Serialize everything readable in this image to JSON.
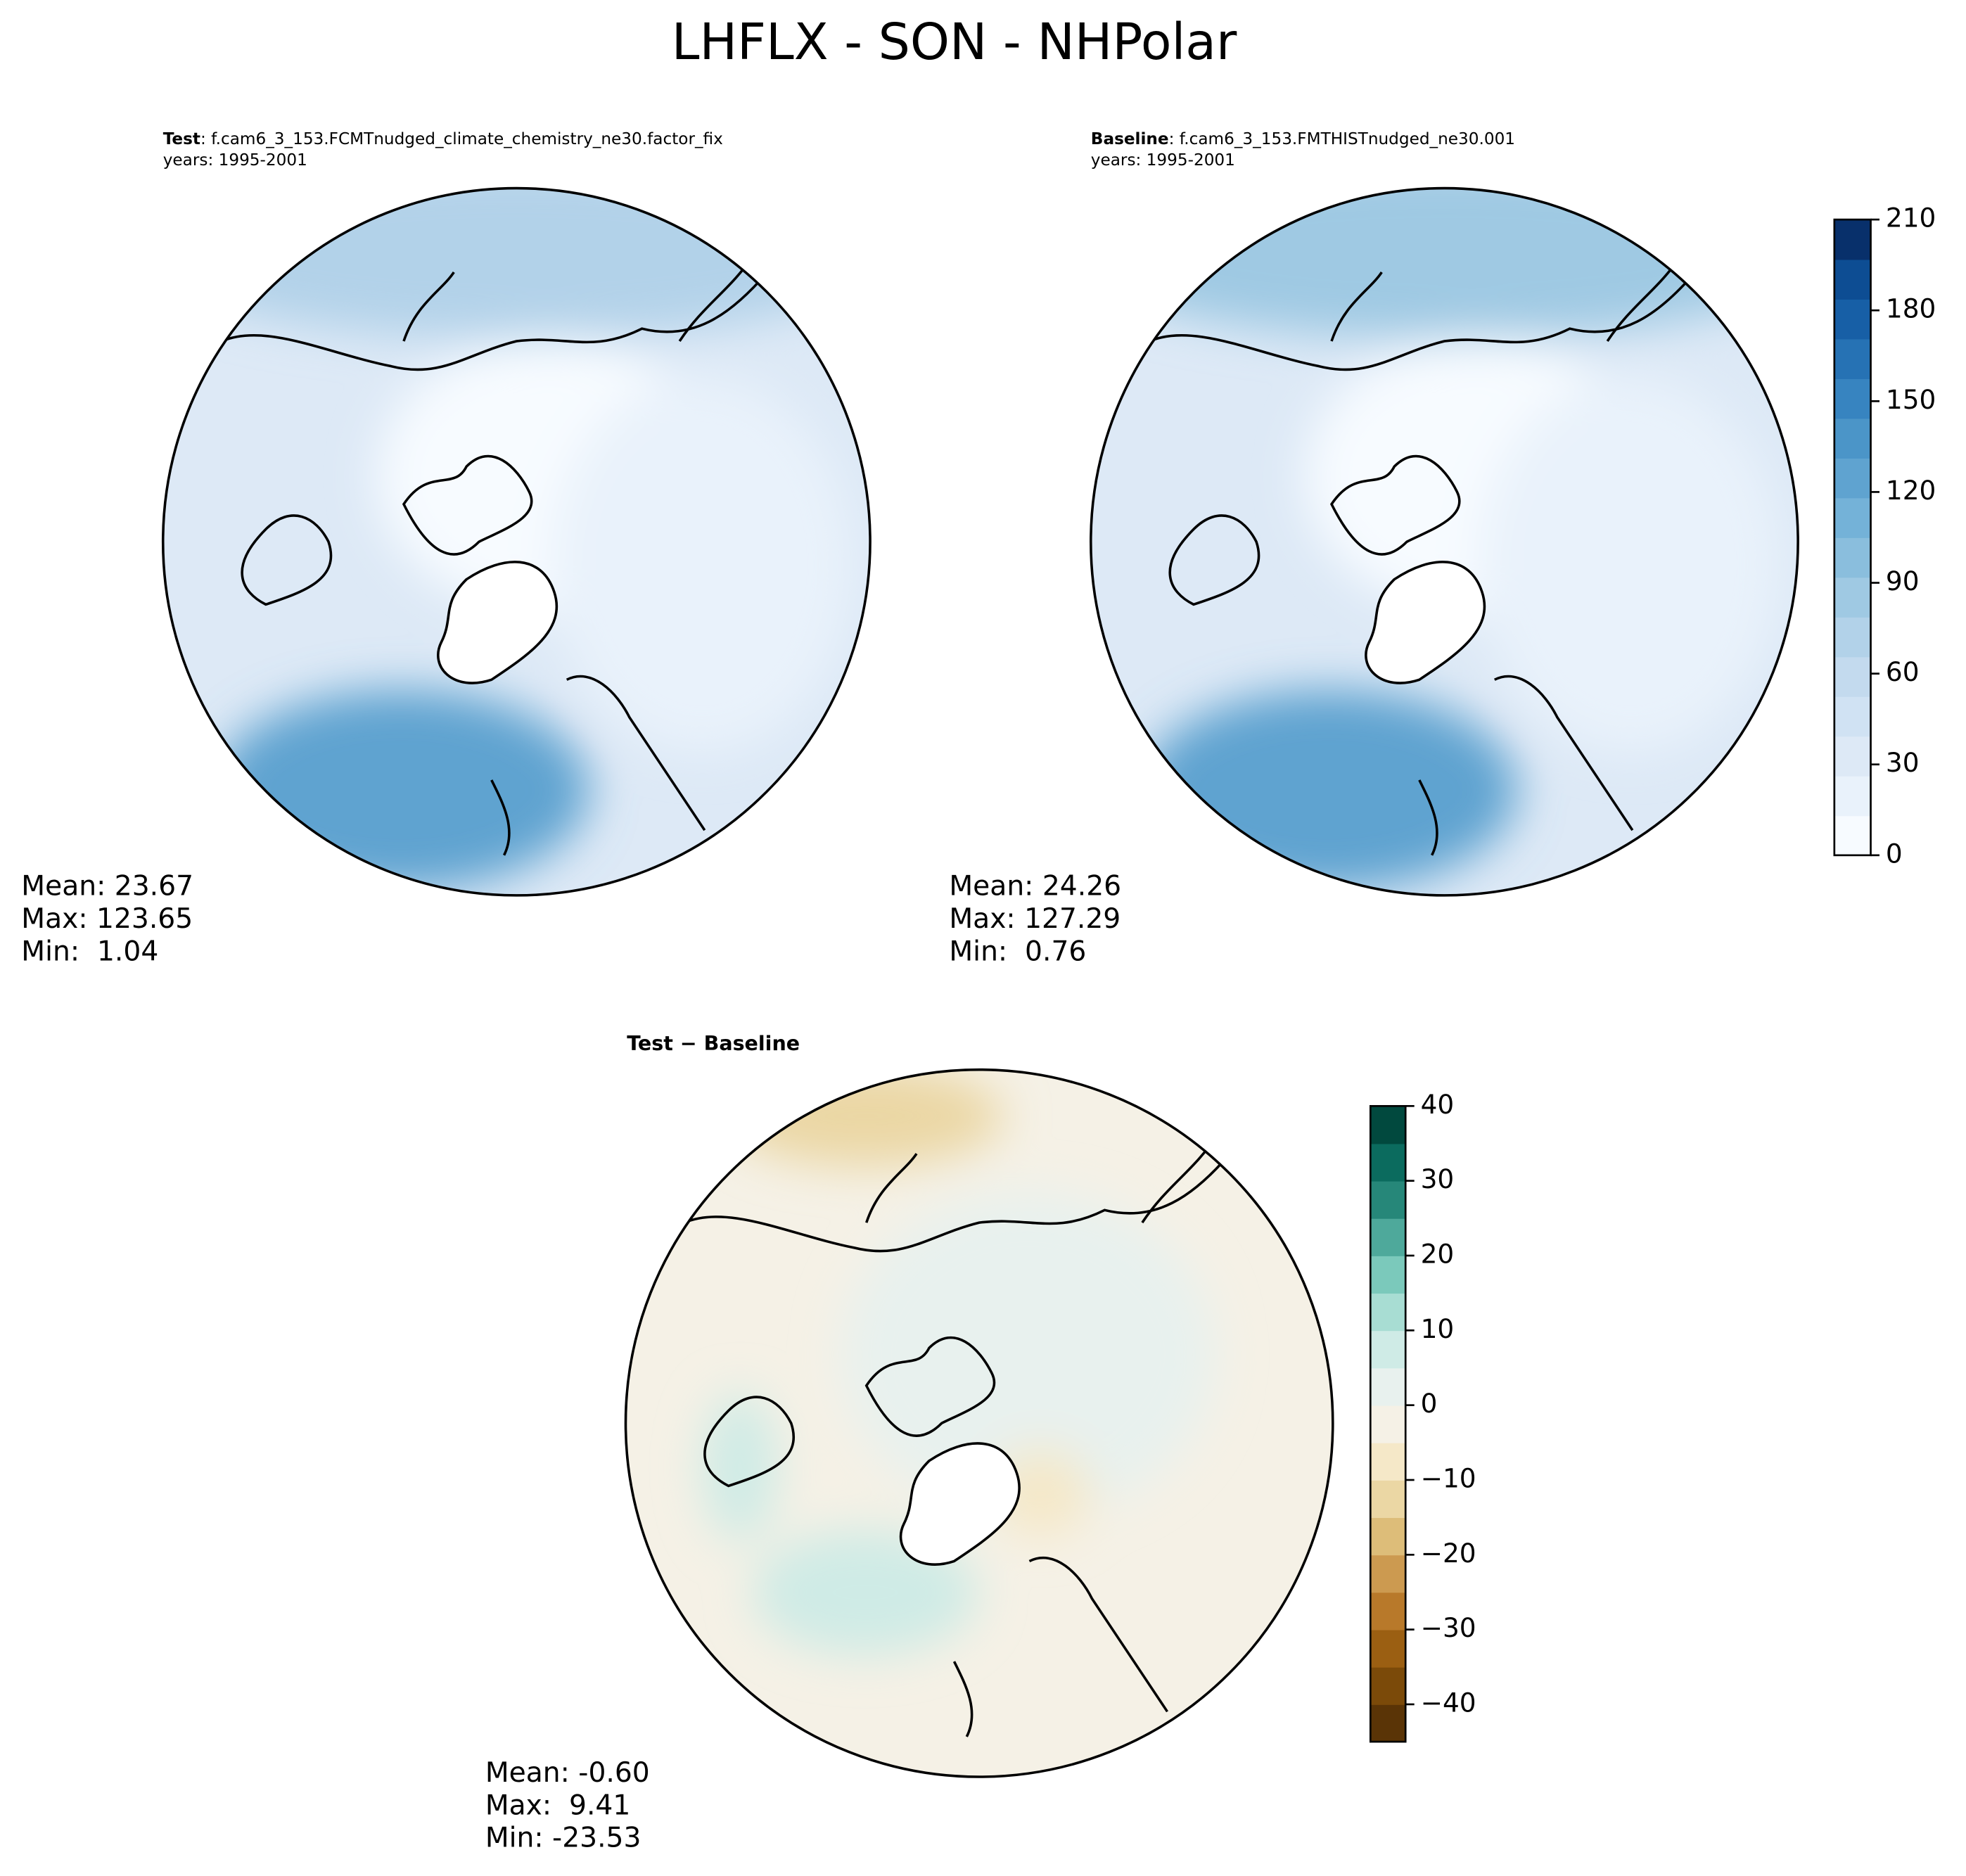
{
  "title": "LHFLX - SON - NHPolar",
  "panels": [
    {
      "name": "Test",
      "case": ": f.cam6_3_153.FCMTnudged_climate_chemistry_ne30.factor_fix",
      "years": "years: 1995-2001",
      "stats": [
        "Mean: 23.67",
        "Max: 123.65",
        "Min:  1.04"
      ]
    },
    {
      "name": "Baseline",
      "case": ": f.cam6_3_153.FMTHISTnudged_ne30.001",
      "years": "years: 1995-2001",
      "stats": [
        "Mean: 24.26",
        "Max: 127.29",
        "Min:  0.76"
      ]
    },
    {
      "name": "Test − Baseline",
      "stats": [
        "Mean: -0.60",
        "Max:  9.41",
        "Min: -23.53"
      ]
    }
  ],
  "colorbars": [
    {
      "lim": [
        0,
        210
      ],
      "ticks": [
        0,
        30,
        60,
        90,
        120,
        150,
        180,
        210
      ],
      "colors": [
        "#f7fbff",
        "#e9f2fb",
        "#dde9f6",
        "#d0e2f3",
        "#c3daee",
        "#b2d2e9",
        "#9fc9e3",
        "#8abedd",
        "#74b2d8",
        "#5fa3d0",
        "#4b95c8",
        "#3784c0",
        "#2672b4",
        "#175fa6",
        "#0d4d93",
        "#08306b"
      ]
    },
    {
      "lim": [
        -45,
        40
      ],
      "ticks": [
        {
          "value": 40,
          "label": "40"
        },
        {
          "value": 30,
          "label": "30"
        },
        {
          "value": 20,
          "label": "20"
        },
        {
          "value": 10,
          "label": "10"
        },
        {
          "value": 0,
          "label": "0"
        },
        {
          "value": -10,
          "label": "−10"
        },
        {
          "value": -20,
          "label": "−20"
        },
        {
          "value": -30,
          "label": "−30"
        },
        {
          "value": -40,
          "label": "−40"
        }
      ],
      "colors": [
        "#5a3406",
        "#7b4a09",
        "#9b5f12",
        "#b8792a",
        "#cc9a50",
        "#ddbd79",
        "#ebd7a4",
        "#f5e8c8",
        "#f5f1e6",
        "#e8f1ee",
        "#cfebe6",
        "#a8ddd3",
        "#7bc9bb",
        "#4ea99b",
        "#268779",
        "#0b6b5e",
        "#01493e"
      ]
    }
  ]
}
